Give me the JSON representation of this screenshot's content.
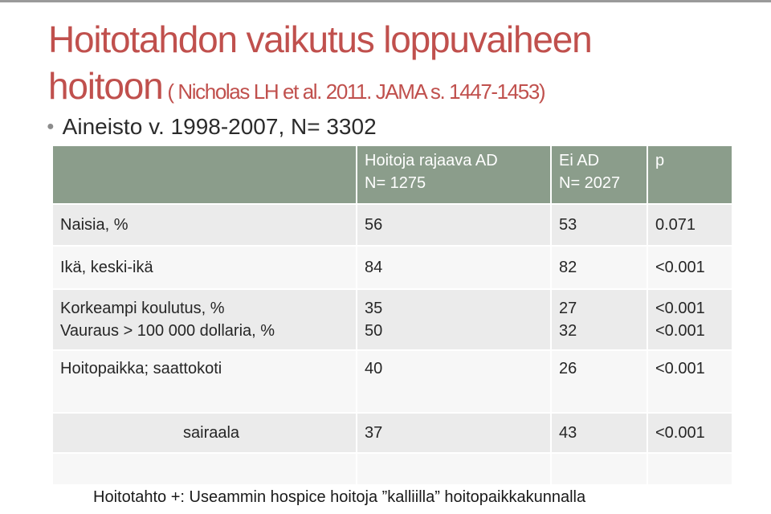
{
  "slide": {
    "title_line1": "Hoitotahdon vaikutus loppuvaiheen",
    "title_line2": "hoitoon",
    "citation": " ( Nicholas LH et al. 2011. JAMA s. 1447-1453)",
    "bullet": "Aineisto v. 1998-2007, N= 3302",
    "footer": "Hoitotahto +: Useammin hospice hoitoja ”kalliilla” hoitopaikkakunnalla"
  },
  "colors": {
    "title": "#c0504d",
    "table_header": "#8b9d8b",
    "row_light": "#ebebeb",
    "row_lighter": "#f7f7f7"
  },
  "table": {
    "header": {
      "col2_line1": "Hoitoja rajaava AD",
      "col2_line2": "N= 1275",
      "col3_line1": "Ei AD",
      "col3_line2": "N= 2027",
      "col4": "p"
    },
    "rows": [
      {
        "label": "Naisia, %",
        "ad": "56",
        "no_ad": "53",
        "p": "0.071"
      },
      {
        "label": "Ikä, keski-ikä",
        "ad": "84",
        "no_ad": "82",
        "p": "<0.001"
      },
      {
        "label_line1": "Korkeampi koulutus, %",
        "label_line2": "Vauraus > 100 000 dollaria, %",
        "ad_line1": "35",
        "ad_line2": "50",
        "no_ad_line1": "27",
        "no_ad_line2": "32",
        "p_line1": "<0.001",
        "p_line2": "<0.001"
      },
      {
        "label": "Hoitopaikka; saattokoti",
        "ad": "40",
        "no_ad": "26",
        "p": "<0.001"
      },
      {
        "label": "sairaala",
        "ad": "37",
        "no_ad": "43",
        "p": "<0.001"
      }
    ]
  }
}
